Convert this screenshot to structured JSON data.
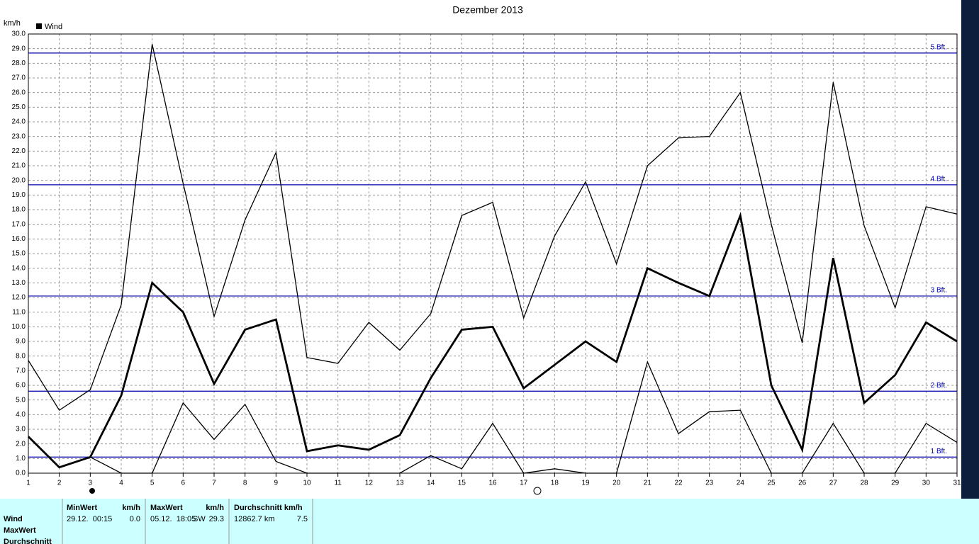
{
  "chart_data": {
    "type": "line",
    "title": "Dezember 2013",
    "y_label": "km/h",
    "legend_label": "Wind",
    "legend_color": "#000000",
    "x": [
      1,
      2,
      3,
      4,
      5,
      6,
      7,
      8,
      9,
      10,
      11,
      12,
      13,
      14,
      15,
      16,
      17,
      18,
      19,
      20,
      21,
      22,
      23,
      24,
      25,
      26,
      27,
      28,
      29,
      30,
      31
    ],
    "xlim": [
      1,
      31
    ],
    "xticks": [
      1,
      2,
      3,
      4,
      5,
      6,
      7,
      8,
      9,
      10,
      11,
      12,
      13,
      14,
      15,
      16,
      17,
      18,
      19,
      20,
      21,
      22,
      23,
      24,
      25,
      26,
      27,
      28,
      29,
      30,
      31
    ],
    "ylim": [
      0,
      30
    ],
    "yticks": [
      {
        "value": 0,
        "label": "0.0"
      },
      {
        "value": 1,
        "label": "1.0"
      },
      {
        "value": 2,
        "label": "2.0"
      },
      {
        "value": 3,
        "label": "3.0"
      },
      {
        "value": 4,
        "label": "4.0"
      },
      {
        "value": 5,
        "label": "5.0"
      },
      {
        "value": 6,
        "label": "6.0"
      },
      {
        "value": 7,
        "label": "7.0"
      },
      {
        "value": 8,
        "label": "8.0"
      },
      {
        "value": 9,
        "label": "9.0"
      },
      {
        "value": 10,
        "label": "10.0"
      },
      {
        "value": 11,
        "label": "11.0"
      },
      {
        "value": 12,
        "label": "12.0"
      },
      {
        "value": 13,
        "label": "13.0"
      },
      {
        "value": 14,
        "label": "14.0"
      },
      {
        "value": 15,
        "label": "15.0"
      },
      {
        "value": 16,
        "label": "16.0"
      },
      {
        "value": 17,
        "label": "17.0"
      },
      {
        "value": 18,
        "label": "18.0"
      },
      {
        "value": 19,
        "label": "19.0"
      },
      {
        "value": 20,
        "label": "20.0"
      },
      {
        "value": 21,
        "label": "21.0"
      },
      {
        "value": 22,
        "label": "22.0"
      },
      {
        "value": 23,
        "label": "23.0"
      },
      {
        "value": 24,
        "label": "24.0"
      },
      {
        "value": 25,
        "label": "25.0"
      },
      {
        "value": 26,
        "label": "26.0"
      },
      {
        "value": 27,
        "label": "27.0"
      },
      {
        "value": 28,
        "label": "28.0"
      },
      {
        "value": 29,
        "label": "29.0"
      },
      {
        "value": 30,
        "label": "30.0"
      }
    ],
    "grid": true,
    "series": [
      {
        "color": "#000000",
        "line_width": 1.3,
        "values": [
          7.7,
          4.3,
          5.7,
          11.5,
          29.3,
          19.8,
          10.7,
          17.3,
          21.9,
          7.9,
          7.5,
          10.3,
          8.4,
          10.9,
          17.6,
          18.5,
          10.6,
          16.2,
          19.9,
          14.3,
          21.0,
          22.9,
          23.0,
          26.0,
          17.0,
          8.9,
          26.7,
          16.9,
          11.3,
          18.2,
          17.7
        ]
      },
      {
        "color": "#000000",
        "line_width": 2.8,
        "values": [
          2.5,
          0.4,
          1.1,
          5.3,
          13.0,
          11.0,
          6.1,
          9.8,
          10.5,
          1.5,
          1.9,
          1.6,
          2.6,
          6.5,
          9.8,
          10.0,
          5.8,
          7.4,
          9.0,
          7.6,
          14.0,
          13.0,
          12.1,
          17.6,
          6.0,
          1.6,
          14.7,
          4.8,
          6.7,
          10.3,
          9.0
        ]
      },
      {
        "color": "#000000",
        "line_width": 1.3,
        "values": [
          2.5,
          0.4,
          1.1,
          0,
          0,
          4.8,
          2.3,
          4.7,
          0.8,
          0,
          0,
          0,
          0,
          1.2,
          0.3,
          3.4,
          0,
          0.3,
          0,
          0,
          7.6,
          2.7,
          4.2,
          4.3,
          0,
          0,
          3.4,
          0,
          0,
          3.4,
          2.1
        ]
      }
    ],
    "reference_color": "#0000a8",
    "reference_lines": [
      {
        "value": 1.1,
        "label": "1 Bft."
      },
      {
        "value": 5.6,
        "label": "2 Bft."
      },
      {
        "value": 12.1,
        "label": "3 Bft."
      },
      {
        "value": 19.7,
        "label": "4 Bft."
      },
      {
        "value": 28.7,
        "label": "5 Bft."
      }
    ]
  },
  "table": {
    "row_labels": [
      "Wind",
      "MaxWert",
      "Durchschnitt"
    ],
    "headers": [
      [
        "MinWert",
        "km/h"
      ],
      [
        "MaxWert",
        "km/h"
      ],
      [
        "Durchschnitt km/h"
      ]
    ],
    "rows": [
      [
        [
          "29.12.  00:15",
          "0.0"
        ],
        [
          "05.12.  18:05",
          "SW",
          "29.3"
        ],
        [
          "12862.7 km",
          "7.5"
        ]
      ]
    ]
  }
}
